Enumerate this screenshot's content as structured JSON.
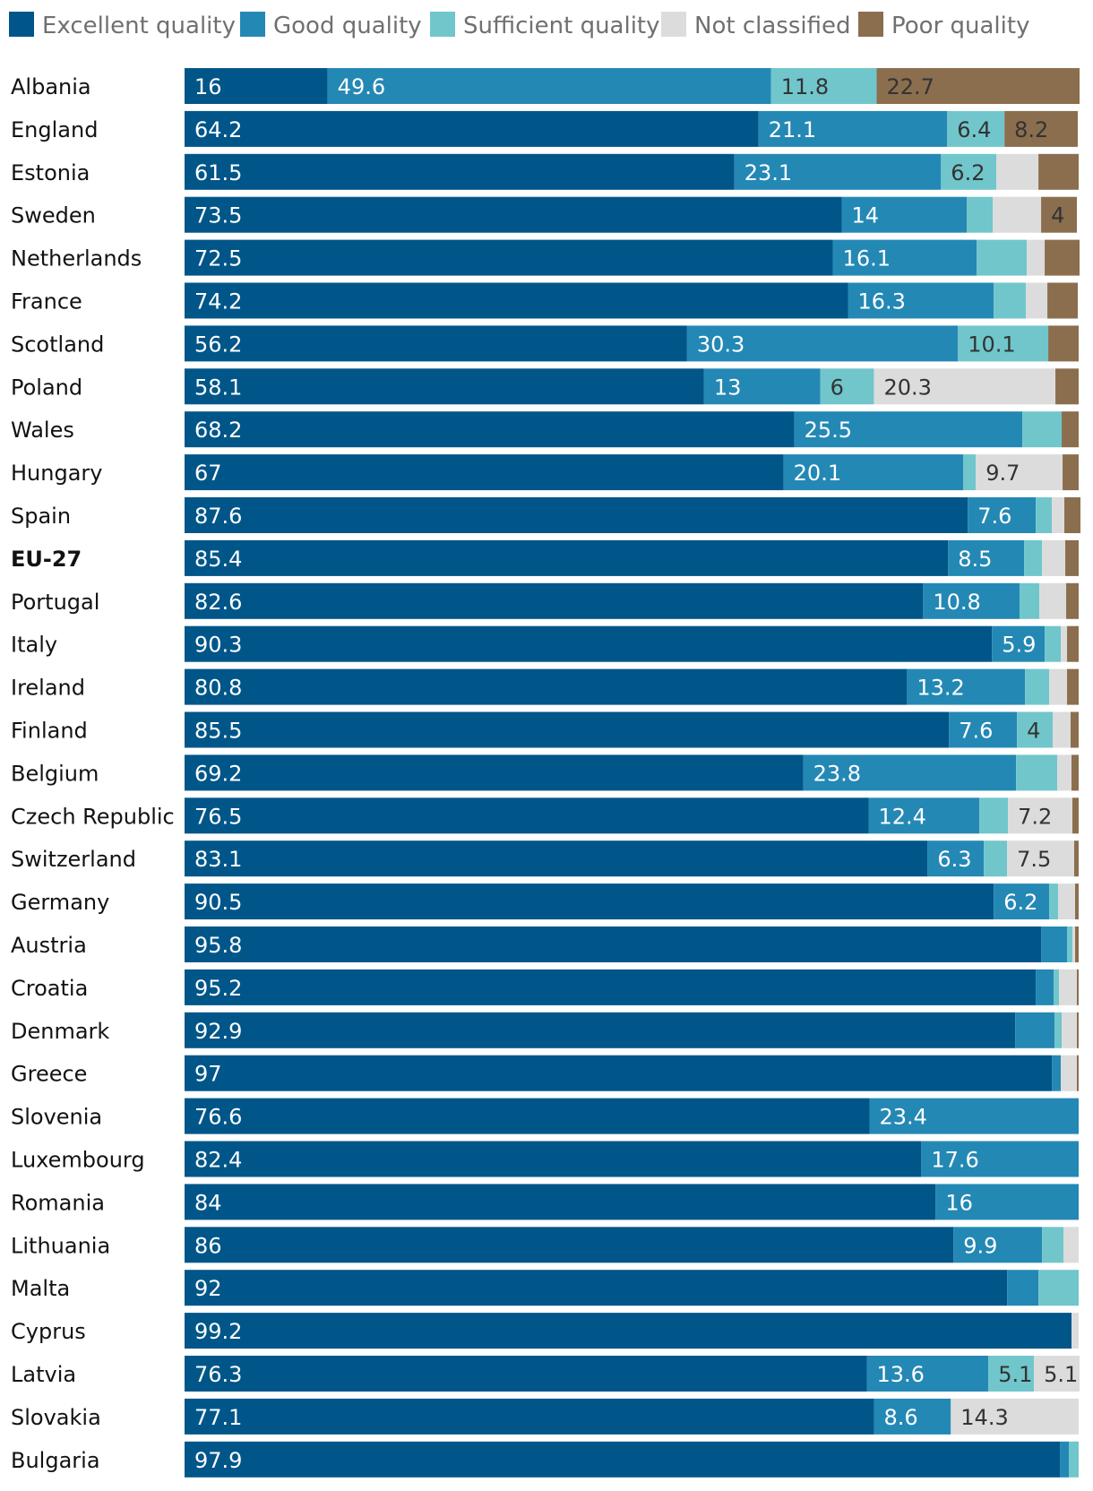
{
  "chart_data": {
    "type": "bar",
    "orientation": "horizontal",
    "stacked": true,
    "units": "percent",
    "xlim": [
      0,
      100
    ],
    "legend_position": "top",
    "series": [
      {
        "name": "Excellent quality",
        "key": "excellent",
        "color": "#005689"
      },
      {
        "name": "Good quality",
        "key": "good",
        "color": "#2488b5"
      },
      {
        "name": "Sufficient quality",
        "key": "sufficient",
        "color": "#70c6cb"
      },
      {
        "name": "Not classified",
        "key": "not_classified",
        "color": "#dcdcdc"
      },
      {
        "name": "Poor quality",
        "key": "poor",
        "color": "#8b6e4e"
      }
    ],
    "rows": [
      {
        "name": "Albania",
        "values": [
          16,
          49.6,
          11.8,
          0,
          22.7
        ],
        "labels": [
          "16",
          "49.6",
          "11.8",
          "",
          "22.7"
        ]
      },
      {
        "name": "England",
        "values": [
          64.2,
          21.1,
          6.4,
          0,
          8.2
        ],
        "labels": [
          "64.2",
          "21.1",
          "6.4",
          "",
          "8.2"
        ]
      },
      {
        "name": "Estonia",
        "values": [
          61.5,
          23.1,
          6.2,
          4.7,
          4.5
        ],
        "labels": [
          "61.5",
          "23.1",
          "6.2",
          "",
          ""
        ]
      },
      {
        "name": "Sweden",
        "values": [
          73.5,
          14,
          2.9,
          5.4,
          4
        ],
        "labels": [
          "73.5",
          "14",
          "",
          "",
          "4"
        ]
      },
      {
        "name": "Netherlands",
        "values": [
          72.5,
          16.1,
          5.6,
          2,
          3.9
        ],
        "labels": [
          "72.5",
          "16.1",
          "",
          "",
          ""
        ]
      },
      {
        "name": "France",
        "values": [
          74.2,
          16.3,
          3.6,
          2.4,
          3.4
        ],
        "labels": [
          "74.2",
          "16.3",
          "",
          "",
          ""
        ]
      },
      {
        "name": "Scotland",
        "values": [
          56.2,
          30.3,
          10.1,
          0,
          3.4
        ],
        "labels": [
          "56.2",
          "30.3",
          "10.1",
          "",
          ""
        ]
      },
      {
        "name": "Poland",
        "values": [
          58.1,
          13,
          6,
          20.3,
          2.6
        ],
        "labels": [
          "58.1",
          "13",
          "6",
          "20.3",
          ""
        ]
      },
      {
        "name": "Wales",
        "values": [
          68.2,
          25.5,
          4.4,
          0,
          1.9
        ],
        "labels": [
          "68.2",
          "25.5",
          "",
          "",
          ""
        ]
      },
      {
        "name": "Hungary",
        "values": [
          67,
          20.1,
          1.4,
          9.7,
          1.8
        ],
        "labels": [
          "67",
          "20.1",
          "",
          "9.7",
          ""
        ]
      },
      {
        "name": "Spain",
        "values": [
          87.6,
          7.6,
          1.8,
          1.4,
          1.8
        ],
        "labels": [
          "87.6",
          "7.6",
          "",
          "",
          ""
        ]
      },
      {
        "name": "EU-27",
        "values": [
          85.4,
          8.5,
          2,
          2.6,
          1.5
        ],
        "labels": [
          "85.4",
          "8.5",
          "",
          "",
          ""
        ],
        "bold": true
      },
      {
        "name": "Portugal",
        "values": [
          82.6,
          10.8,
          2.2,
          3,
          1.4
        ],
        "labels": [
          "82.6",
          "10.8",
          "",
          "",
          ""
        ]
      },
      {
        "name": "Italy",
        "values": [
          90.3,
          5.9,
          1.8,
          0.7,
          1.3
        ],
        "labels": [
          "90.3",
          "5.9",
          "",
          "",
          ""
        ]
      },
      {
        "name": "Ireland",
        "values": [
          80.8,
          13.2,
          2.7,
          2,
          1.3
        ],
        "labels": [
          "80.8",
          "13.2",
          "",
          "",
          ""
        ]
      },
      {
        "name": "Finland",
        "values": [
          85.5,
          7.6,
          4,
          2,
          0.9
        ],
        "labels": [
          "85.5",
          "7.6",
          "4",
          "",
          ""
        ]
      },
      {
        "name": "Belgium",
        "values": [
          69.2,
          23.8,
          4.6,
          1.6,
          0.8
        ],
        "labels": [
          "69.2",
          "23.8",
          "",
          "",
          ""
        ]
      },
      {
        "name": "Czech Republic",
        "values": [
          76.5,
          12.4,
          3.2,
          7.2,
          0.7
        ],
        "labels": [
          "76.5",
          "12.4",
          "",
          "7.2",
          ""
        ]
      },
      {
        "name": "Switzerland",
        "values": [
          83.1,
          6.3,
          2.6,
          7.5,
          0.5
        ],
        "labels": [
          "83.1",
          "6.3",
          "",
          "7.5",
          ""
        ]
      },
      {
        "name": "Germany",
        "values": [
          90.5,
          6.2,
          1,
          1.9,
          0.4
        ],
        "labels": [
          "90.5",
          "6.2",
          "",
          "",
          ""
        ]
      },
      {
        "name": "Austria",
        "values": [
          95.8,
          2.9,
          0.6,
          0.3,
          0.4
        ],
        "labels": [
          "95.8",
          "",
          "",
          "",
          ""
        ]
      },
      {
        "name": "Croatia",
        "values": [
          95.2,
          2,
          0.6,
          2,
          0.2
        ],
        "labels": [
          "95.2",
          "",
          "",
          "",
          ""
        ]
      },
      {
        "name": "Denmark",
        "values": [
          92.9,
          4.4,
          0.8,
          1.7,
          0.2
        ],
        "labels": [
          "92.9",
          "",
          "",
          "",
          ""
        ]
      },
      {
        "name": "Greece",
        "values": [
          97,
          1,
          0,
          1.8,
          0.2
        ],
        "labels": [
          "97",
          "",
          "",
          "",
          ""
        ]
      },
      {
        "name": "Slovenia",
        "values": [
          76.6,
          23.4,
          0,
          0,
          0
        ],
        "labels": [
          "76.6",
          "23.4",
          "",
          "",
          ""
        ]
      },
      {
        "name": "Luxembourg",
        "values": [
          82.4,
          17.6,
          0,
          0,
          0
        ],
        "labels": [
          "82.4",
          "17.6",
          "",
          "",
          ""
        ]
      },
      {
        "name": "Romania",
        "values": [
          84,
          16,
          0,
          0,
          0
        ],
        "labels": [
          "84",
          "16",
          "",
          "",
          ""
        ]
      },
      {
        "name": "Lithuania",
        "values": [
          86,
          9.9,
          2.4,
          1.7,
          0
        ],
        "labels": [
          "86",
          "9.9",
          "",
          "",
          ""
        ]
      },
      {
        "name": "Malta",
        "values": [
          92,
          3.5,
          4.5,
          0,
          0
        ],
        "labels": [
          "92",
          "",
          "",
          "",
          ""
        ]
      },
      {
        "name": "Cyprus",
        "values": [
          99.2,
          0,
          0,
          0.8,
          0
        ],
        "labels": [
          "99.2",
          "",
          "",
          "",
          ""
        ]
      },
      {
        "name": "Latvia",
        "values": [
          76.3,
          13.6,
          5.1,
          5.1,
          0
        ],
        "labels": [
          "76.3",
          "13.6",
          "5.1",
          "5.1",
          ""
        ]
      },
      {
        "name": "Slovakia",
        "values": [
          77.1,
          8.6,
          0,
          14.3,
          0
        ],
        "labels": [
          "77.1",
          "8.6",
          "",
          "14.3",
          ""
        ]
      },
      {
        "name": "Bulgaria",
        "values": [
          97.9,
          1,
          1.1,
          0,
          0
        ],
        "labels": [
          "97.9",
          "",
          "",
          "",
          ""
        ]
      }
    ]
  }
}
